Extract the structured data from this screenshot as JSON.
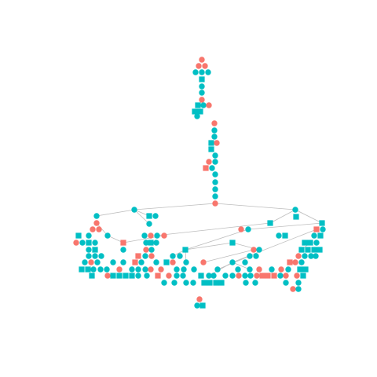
{
  "diagram": {
    "type": "network graph",
    "colors": {
      "background": "#ffffff",
      "edge": "#bdbdbd",
      "group_a": "#00BFC4",
      "group_b": "#F8766D"
    },
    "node_shapes": [
      "circle",
      "square"
    ],
    "labels_present": false
  }
}
